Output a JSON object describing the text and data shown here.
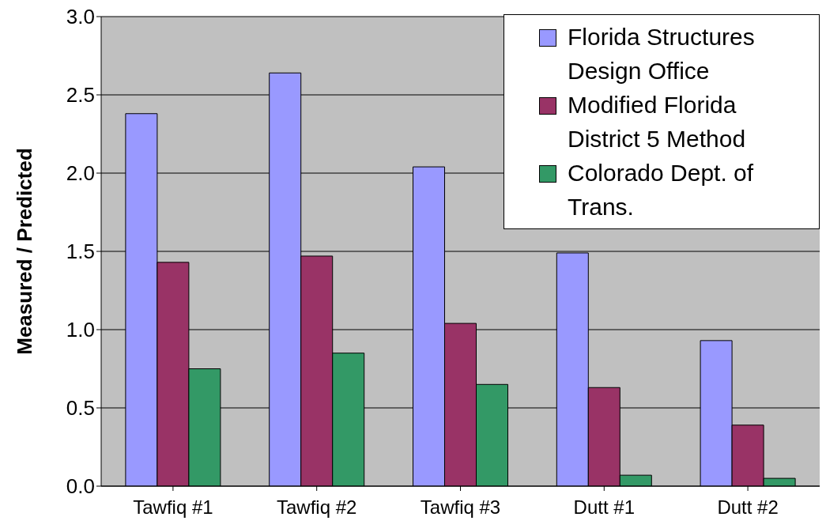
{
  "chart_data": {
    "type": "bar",
    "ylabel": "Measured / Predicted",
    "categories": [
      "Tawfiq #1",
      "Tawfiq #2",
      "Tawfiq #3",
      "Dutt #1",
      "Dutt #2"
    ],
    "series": [
      {
        "name": "Florida Structures Design Office",
        "color": "#9999ff",
        "values": [
          2.38,
          2.64,
          2.04,
          1.49,
          0.93
        ]
      },
      {
        "name": "Modified Florida District 5 Method",
        "color": "#993366",
        "values": [
          1.43,
          1.47,
          1.04,
          0.63,
          0.39
        ]
      },
      {
        "name": "Colorado Dept. of Trans.",
        "color": "#339966",
        "values": [
          0.75,
          0.85,
          0.65,
          0.07,
          0.05
        ]
      }
    ],
    "ylim": [
      0,
      3
    ],
    "yticks": [
      {
        "value": 0,
        "label": "0.0"
      },
      {
        "value": 0.5,
        "label": "0.5"
      },
      {
        "value": 1,
        "label": "1.0"
      },
      {
        "value": 1.5,
        "label": "1.5"
      },
      {
        "value": 2,
        "label": "2.0"
      },
      {
        "value": 2.5,
        "label": "2.5"
      },
      {
        "value": 3,
        "label": "3.0"
      }
    ],
    "grid": "y",
    "legend": "top right"
  }
}
